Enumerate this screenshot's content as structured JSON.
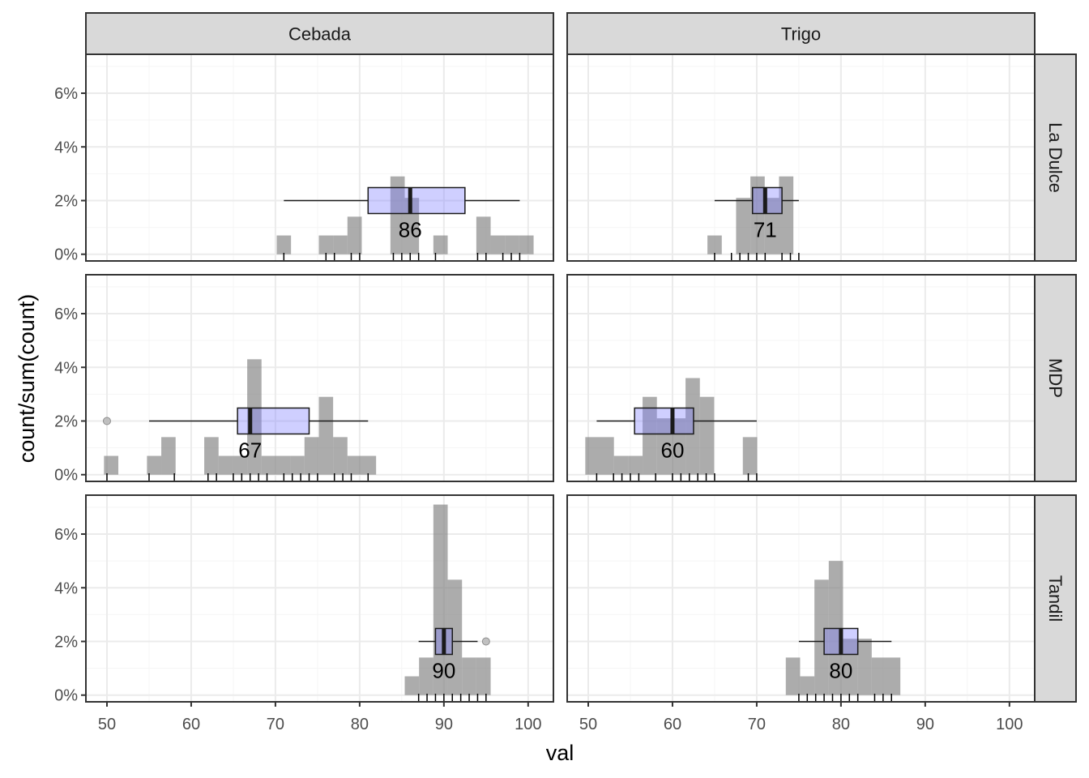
{
  "chart_data": {
    "type": "histogram-boxplot-facet",
    "xlabel": "val",
    "ylabel": "count/sum(count)",
    "xlim": [
      47.5,
      103
    ],
    "ylim": [
      -0.0025,
      0.0745
    ],
    "x_ticks": [
      50,
      60,
      70,
      80,
      90,
      100
    ],
    "x_tick_labels": [
      "50",
      "60",
      "70",
      "80",
      "90",
      "100"
    ],
    "y_ticks": [
      0,
      0.02,
      0.04,
      0.06
    ],
    "y_tick_labels": [
      "0%",
      "2%",
      "4%",
      "6%"
    ],
    "grid": true,
    "columns": [
      "Cebada",
      "Trigo"
    ],
    "rows": [
      "La Dulce",
      "MDP",
      "Tandil"
    ],
    "colors": {
      "histogram": "#7f7f7f",
      "box_fill": "#8080ff",
      "box_edge": "#1a1a1a",
      "strip_fill": "#d9d9d9",
      "grid_major": "#ebebeb",
      "grid_minor": "#f5f5f5"
    },
    "panels": [
      {
        "column": "Cebada",
        "row": "La Dulce",
        "bin_width": 1.7,
        "bars": [
          [
            71,
            0.007
          ],
          [
            76,
            0.007
          ],
          [
            77.7,
            0.007
          ],
          [
            79.4,
            0.014
          ],
          [
            84.5,
            0.029
          ],
          [
            86.2,
            0.021
          ],
          [
            89.6,
            0.007
          ],
          [
            94.7,
            0.014
          ],
          [
            96.4,
            0.007
          ],
          [
            98.1,
            0.007
          ],
          [
            99.8,
            0.007
          ]
        ],
        "box": {
          "min": 71,
          "q1": 81,
          "median": 86,
          "q3": 92.5,
          "max": 99
        },
        "outliers": [],
        "median_label": "86",
        "rug": [
          71,
          76,
          77,
          79,
          80,
          84,
          85,
          86,
          87,
          89,
          94,
          95,
          97,
          98,
          99
        ]
      },
      {
        "column": "Trigo",
        "row": "La Dulce",
        "bin_width": 1.7,
        "bars": [
          [
            65,
            0.007
          ],
          [
            68.4,
            0.021
          ],
          [
            70.1,
            0.029
          ],
          [
            71.8,
            0.021
          ],
          [
            73.5,
            0.029
          ]
        ],
        "box": {
          "min": 65,
          "q1": 69.5,
          "median": 71,
          "q3": 73,
          "max": 75
        },
        "outliers": [],
        "median_label": "71",
        "rug": [
          65,
          67,
          68,
          69,
          70,
          71,
          73,
          74,
          75
        ]
      },
      {
        "column": "Cebada",
        "row": "MDP",
        "bin_width": 1.7,
        "bars": [
          [
            50.5,
            0.007
          ],
          [
            55.6,
            0.007
          ],
          [
            57.3,
            0.014
          ],
          [
            62.4,
            0.014
          ],
          [
            64.1,
            0.007
          ],
          [
            65.8,
            0.007
          ],
          [
            67.5,
            0.043
          ],
          [
            69.2,
            0.007
          ],
          [
            70.9,
            0.007
          ],
          [
            72.6,
            0.007
          ],
          [
            74.3,
            0.014
          ],
          [
            76,
            0.029
          ],
          [
            77.7,
            0.014
          ],
          [
            79.4,
            0.007
          ],
          [
            81.1,
            0.007
          ]
        ],
        "box": {
          "min": 55,
          "q1": 65.5,
          "median": 67,
          "q3": 74,
          "max": 81
        },
        "outliers": [
          50
        ],
        "median_label": "67",
        "rug": [
          50,
          55,
          58,
          62,
          63,
          65,
          66,
          67,
          68,
          69,
          71,
          72,
          73,
          74,
          75,
          77,
          78,
          79,
          81
        ]
      },
      {
        "column": "Trigo",
        "row": "MDP",
        "bin_width": 1.7,
        "bars": [
          [
            50.5,
            0.014
          ],
          [
            52.2,
            0.014
          ],
          [
            53.9,
            0.007
          ],
          [
            55.6,
            0.007
          ],
          [
            57.3,
            0.029
          ],
          [
            59,
            0.021
          ],
          [
            60.7,
            0.021
          ],
          [
            62.4,
            0.036
          ],
          [
            64.1,
            0.029
          ],
          [
            69.2,
            0.014
          ]
        ],
        "box": {
          "min": 51,
          "q1": 55.5,
          "median": 60,
          "q3": 62.5,
          "max": 70
        },
        "outliers": [],
        "median_label": "60",
        "rug": [
          51,
          53,
          54,
          55,
          56,
          58,
          60,
          61,
          62,
          63,
          64,
          65,
          69,
          70
        ]
      },
      {
        "column": "Cebada",
        "row": "Tandil",
        "bin_width": 1.7,
        "bars": [
          [
            86.2,
            0.007
          ],
          [
            87.9,
            0.014
          ],
          [
            89.6,
            0.071
          ],
          [
            91.3,
            0.043
          ],
          [
            93,
            0.014
          ],
          [
            94.7,
            0.014
          ]
        ],
        "box": {
          "min": 87,
          "q1": 89,
          "median": 90,
          "q3": 91,
          "max": 94
        },
        "outliers": [
          95
        ],
        "median_label": "90",
        "rug": [
          87,
          88,
          89,
          90,
          91,
          92,
          93,
          94,
          95
        ]
      },
      {
        "column": "Trigo",
        "row": "Tandil",
        "bin_width": 1.7,
        "bars": [
          [
            74.3,
            0.014
          ],
          [
            76,
            0.007
          ],
          [
            77.7,
            0.043
          ],
          [
            79.4,
            0.05
          ],
          [
            81.1,
            0.021
          ],
          [
            82.8,
            0.021
          ],
          [
            84.5,
            0.014
          ],
          [
            86.2,
            0.014
          ]
        ],
        "box": {
          "min": 75,
          "q1": 78,
          "median": 80,
          "q3": 82,
          "max": 86
        },
        "outliers": [],
        "median_label": "80",
        "rug": [
          75,
          76,
          77,
          78,
          79,
          80,
          81,
          82,
          84,
          85,
          86
        ]
      }
    ]
  }
}
